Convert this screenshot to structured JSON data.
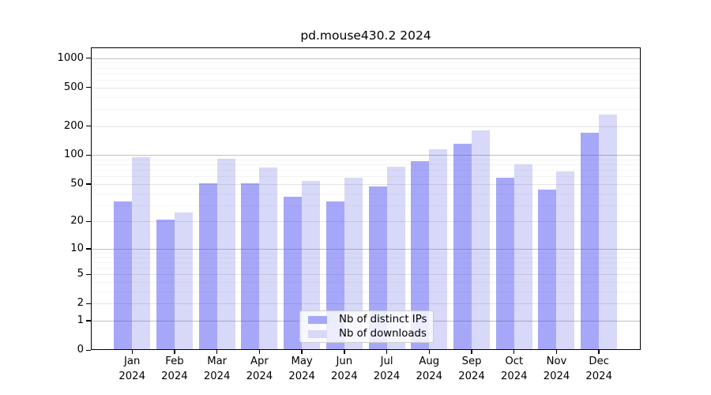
{
  "chart_data": {
    "type": "bar",
    "title": "pd.mouse430.2 2024",
    "year": "2024",
    "months": [
      "Jan",
      "Feb",
      "Mar",
      "Apr",
      "May",
      "Jun",
      "Jul",
      "Aug",
      "Sep",
      "Oct",
      "Nov",
      "Dec"
    ],
    "series": [
      {
        "name": "Nb of distinct IPs",
        "color": "#a7a7fa",
        "values": [
          33,
          21,
          51,
          51,
          37,
          33,
          47,
          87,
          130,
          58,
          44,
          170
        ]
      },
      {
        "name": "Nb of downloads",
        "color": "#d8d8f9",
        "values": [
          95,
          25,
          92,
          75,
          54,
          58,
          76,
          115,
          180,
          81,
          68,
          265
        ]
      }
    ],
    "y_ticks": [
      0,
      1,
      2,
      5,
      10,
      20,
      50,
      100,
      200,
      500,
      1000
    ],
    "y_scale": "log1p",
    "ylim": [
      0,
      1000
    ],
    "grid": true,
    "legend_position": "bottom-center",
    "axis_color": "#000000",
    "grid_color_major": "#b7b7b7",
    "grid_color_mid": "#e4e4e4",
    "grid_color_minor": "#f2f2f2"
  }
}
